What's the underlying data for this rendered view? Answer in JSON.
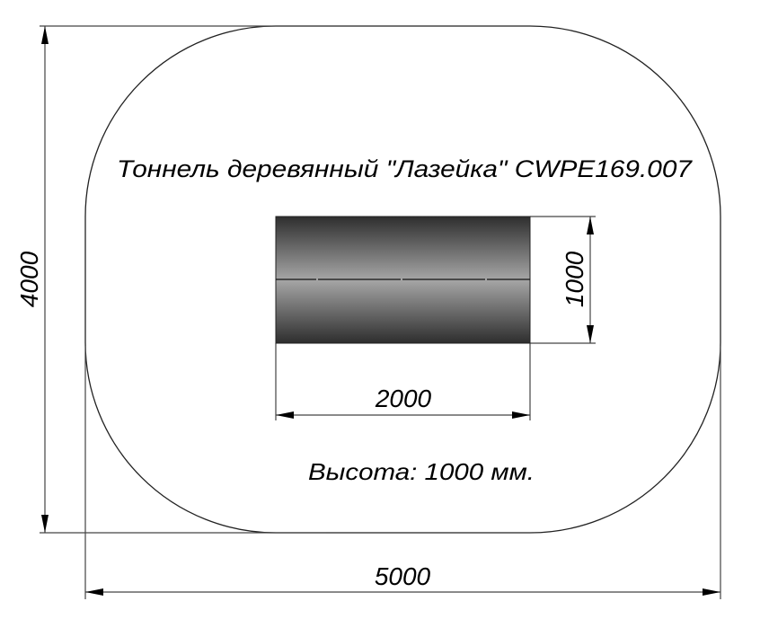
{
  "title": "Тоннель деревянный \"Лазейка\" CWPE169.007",
  "height_note": "Высота: 1000 мм.",
  "dimensions": {
    "overall_width": "5000",
    "overall_depth": "4000",
    "tunnel_length": "2000",
    "tunnel_width": "1000"
  },
  "colors": {
    "line": "#000000",
    "tunnel_dark": "#2e2e2e",
    "tunnel_light": "#a6a6a6"
  }
}
